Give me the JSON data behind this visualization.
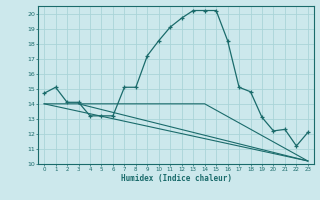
{
  "xlabel": "Humidex (Indice chaleur)",
  "background_color": "#cce8ec",
  "grid_color": "#aad4d8",
  "line_color": "#1a6b6b",
  "xlim": [
    -0.5,
    23.5
  ],
  "ylim": [
    10,
    20.5
  ],
  "yticks": [
    10,
    11,
    12,
    13,
    14,
    15,
    16,
    17,
    18,
    19,
    20
  ],
  "xticks": [
    0,
    1,
    2,
    3,
    4,
    5,
    6,
    7,
    8,
    9,
    10,
    11,
    12,
    13,
    14,
    15,
    16,
    17,
    18,
    19,
    20,
    21,
    22,
    23
  ],
  "series1_x": [
    0,
    1,
    2,
    3,
    4,
    5,
    6,
    7,
    8,
    9,
    10,
    11,
    12,
    13,
    14,
    15,
    16,
    17,
    18,
    19,
    20,
    21,
    22,
    23
  ],
  "series1_y": [
    14.7,
    15.1,
    14.1,
    14.1,
    13.2,
    13.2,
    13.2,
    15.1,
    15.1,
    17.2,
    18.2,
    19.1,
    19.7,
    20.2,
    20.2,
    20.2,
    18.2,
    15.1,
    14.8,
    13.1,
    12.2,
    12.3,
    11.2,
    12.1
  ],
  "series2_x": [
    0,
    3,
    23
  ],
  "series2_y": [
    14.0,
    14.0,
    10.2
  ],
  "series3_x": [
    3,
    14,
    23
  ],
  "series3_y": [
    14.0,
    14.0,
    10.2
  ],
  "series4_x": [
    0,
    23
  ],
  "series4_y": [
    14.0,
    10.2
  ]
}
